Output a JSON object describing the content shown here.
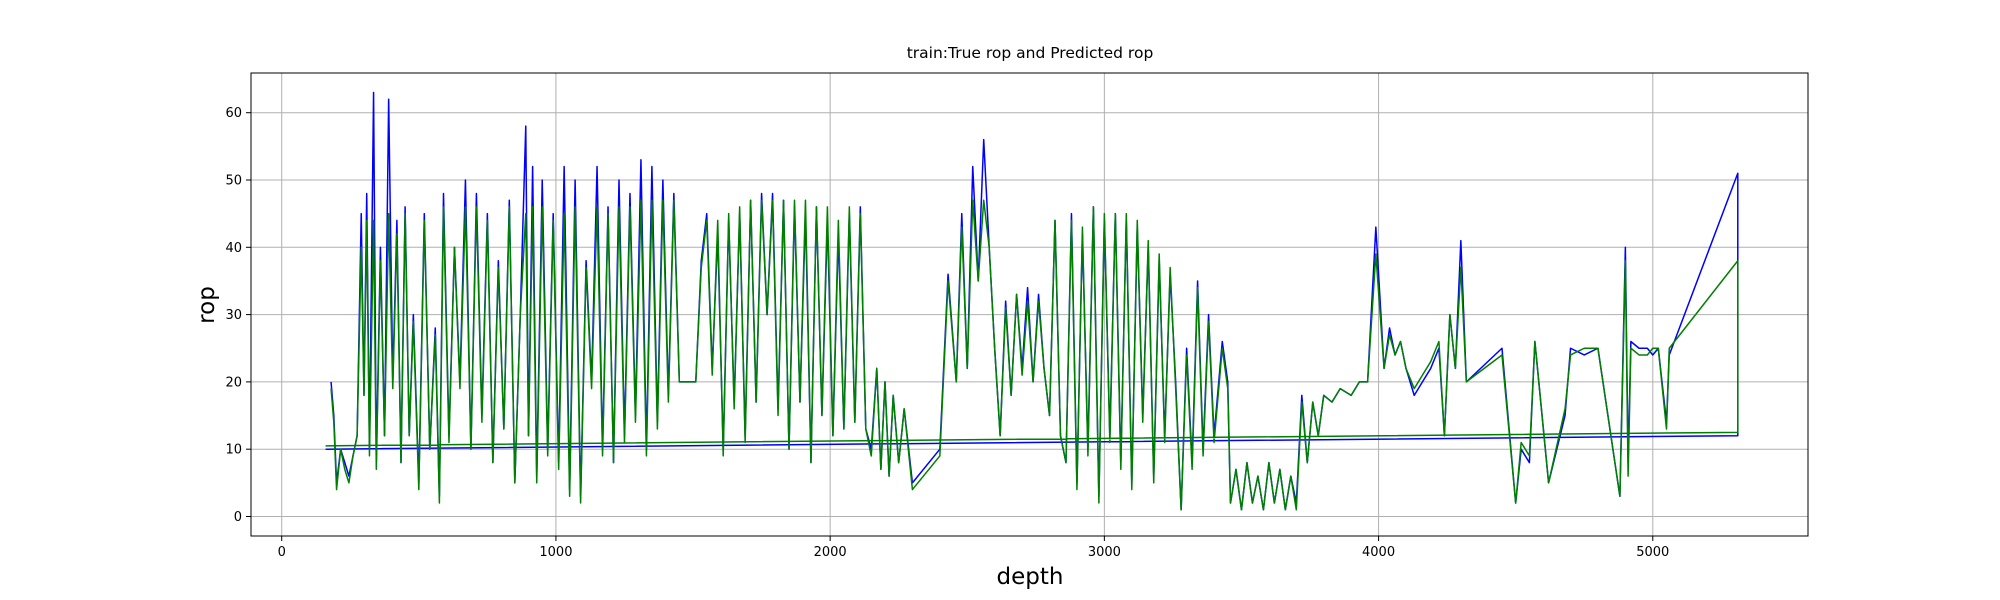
{
  "chart_data": {
    "type": "line",
    "title": "train:True rop and Predicted rop",
    "x_label": "depth",
    "y_label": "rop",
    "x": [
      180,
      190,
      200,
      215,
      230,
      245,
      260,
      275,
      290,
      300,
      310,
      320,
      335,
      345,
      360,
      375,
      390,
      405,
      420,
      435,
      450,
      465,
      480,
      500,
      520,
      540,
      560,
      575,
      590,
      610,
      630,
      650,
      670,
      690,
      710,
      730,
      750,
      770,
      790,
      810,
      830,
      850,
      870,
      890,
      900,
      915,
      930,
      950,
      970,
      990,
      1010,
      1030,
      1050,
      1070,
      1090,
      1110,
      1130,
      1150,
      1170,
      1190,
      1210,
      1230,
      1250,
      1270,
      1290,
      1310,
      1330,
      1350,
      1370,
      1390,
      1410,
      1430,
      1450,
      1470,
      1490,
      1510,
      1530,
      1550,
      1570,
      1590,
      1610,
      1630,
      1650,
      1670,
      1690,
      1710,
      1730,
      1750,
      1770,
      1790,
      1810,
      1830,
      1850,
      1870,
      1890,
      1910,
      1930,
      1950,
      1970,
      1990,
      2010,
      2030,
      2050,
      2070,
      2090,
      2110,
      2130,
      2150,
      2170,
      2185,
      2200,
      2215,
      2230,
      2250,
      2270,
      2300,
      2400,
      2430,
      2460,
      2480,
      2500,
      2520,
      2540,
      2560,
      2580,
      2600,
      2620,
      2640,
      2660,
      2680,
      2700,
      2720,
      2740,
      2760,
      2780,
      2800,
      2820,
      2840,
      2860,
      2880,
      2900,
      2920,
      2940,
      2960,
      2980,
      3000,
      3020,
      3040,
      3060,
      3080,
      3100,
      3120,
      3140,
      3160,
      3180,
      3200,
      3220,
      3240,
      3260,
      3280,
      3300,
      3320,
      3340,
      3360,
      3380,
      3400,
      3430,
      3450,
      3460,
      3480,
      3500,
      3520,
      3540,
      3560,
      3580,
      3600,
      3620,
      3640,
      3660,
      3680,
      3700,
      3720,
      3740,
      3760,
      3780,
      3800,
      3830,
      3860,
      3900,
      3930,
      3960,
      3990,
      4020,
      4040,
      4060,
      4080,
      4100,
      4130,
      4160,
      4190,
      4220,
      4240,
      4260,
      4280,
      4300,
      4320,
      4450,
      4500,
      4520,
      4550,
      4570,
      4620,
      4680,
      4700,
      4750,
      4800,
      4880,
      4900,
      4910,
      4920,
      4950,
      4980,
      5000,
      5020,
      5050,
      5060,
      5310,
      5310,
      160
    ],
    "series": [
      {
        "color": "#0000ff",
        "values": [
          20,
          15,
          5,
          10,
          8,
          6,
          9,
          12,
          45,
          18,
          48,
          10,
          63,
          8,
          40,
          12,
          62,
          20,
          44,
          8,
          46,
          12,
          30,
          5,
          45,
          10,
          28,
          3,
          48,
          12,
          40,
          20,
          50,
          10,
          48,
          15,
          45,
          8,
          38,
          13,
          47,
          5,
          30,
          58,
          12,
          52,
          6,
          50,
          10,
          45,
          8,
          52,
          4,
          50,
          3,
          38,
          20,
          52,
          10,
          46,
          8,
          50,
          12,
          48,
          15,
          53,
          10,
          52,
          14,
          50,
          18,
          48,
          20,
          20,
          20,
          20,
          38,
          45,
          22,
          42,
          10,
          44,
          17,
          45,
          12,
          47,
          17,
          48,
          30,
          48,
          16,
          47,
          10,
          46,
          17,
          45,
          8,
          46,
          15,
          44,
          12,
          42,
          13,
          45,
          14,
          46,
          13,
          10,
          22,
          7,
          20,
          6,
          18,
          8,
          16,
          5,
          10,
          36,
          20,
          45,
          22,
          52,
          35,
          56,
          40,
          25,
          12,
          32,
          18,
          33,
          22,
          34,
          20,
          33,
          22,
          15,
          44,
          12,
          8,
          45,
          5,
          42,
          10,
          46,
          3,
          44,
          12,
          45,
          8,
          44,
          5,
          43,
          15,
          40,
          6,
          38,
          12,
          36,
          20,
          1,
          25,
          8,
          35,
          10,
          30,
          12,
          26,
          20,
          2,
          7,
          1,
          8,
          2,
          6,
          1,
          8,
          2,
          7,
          1,
          6,
          2,
          18,
          8,
          17,
          12,
          18,
          17,
          19,
          18,
          20,
          20,
          43,
          22,
          28,
          24,
          26,
          22,
          18,
          20,
          22,
          25,
          12,
          30,
          22,
          41,
          20,
          25,
          2,
          10,
          8,
          26,
          5,
          15,
          25,
          24,
          25,
          3,
          40,
          8,
          26,
          25,
          25,
          24,
          25,
          14,
          24,
          51,
          12,
          10
        ]
      },
      {
        "color": "#008000",
        "values": [
          19,
          14,
          4,
          10,
          7,
          5,
          9,
          12,
          40,
          18,
          44,
          9,
          44,
          7,
          38,
          12,
          45,
          19,
          42,
          8,
          45,
          12,
          29,
          4,
          44,
          10,
          27,
          2,
          46,
          11,
          40,
          19,
          46,
          10,
          46,
          14,
          44,
          8,
          37,
          13,
          46,
          5,
          30,
          45,
          12,
          46,
          5,
          46,
          9,
          44,
          7,
          45,
          3,
          46,
          2,
          37,
          19,
          46,
          9,
          45,
          8,
          46,
          11,
          46,
          14,
          47,
          9,
          47,
          13,
          47,
          17,
          47,
          20,
          20,
          20,
          20,
          37,
          44,
          21,
          44,
          9,
          45,
          16,
          46,
          11,
          47,
          17,
          47,
          30,
          47,
          15,
          47,
          10,
          47,
          17,
          47,
          8,
          46,
          15,
          46,
          12,
          44,
          13,
          46,
          14,
          45,
          13,
          9,
          22,
          7,
          20,
          6,
          18,
          8,
          16,
          4,
          9,
          35,
          20,
          43,
          22,
          47,
          35,
          47,
          40,
          25,
          12,
          31,
          18,
          33,
          21,
          32,
          20,
          32,
          22,
          15,
          44,
          12,
          8,
          44,
          4,
          43,
          9,
          46,
          2,
          45,
          11,
          45,
          7,
          45,
          4,
          44,
          14,
          41,
          5,
          39,
          11,
          37,
          19,
          1,
          24,
          7,
          34,
          9,
          29,
          11,
          25,
          19,
          2,
          7,
          1,
          8,
          2,
          6,
          1,
          8,
          2,
          7,
          1,
          6,
          1,
          17,
          8,
          17,
          12,
          18,
          17,
          19,
          18,
          20,
          20,
          39,
          22,
          27,
          24,
          26,
          22,
          19,
          21,
          23,
          26,
          12,
          30,
          22,
          37,
          20,
          24,
          2,
          11,
          9,
          26,
          5,
          16,
          24,
          25,
          25,
          3,
          38,
          6,
          25,
          24,
          24,
          25,
          25,
          13,
          25,
          38,
          12.5,
          10.5
        ]
      }
    ],
    "xlim": [
      -112,
      5566
    ],
    "ylim": [
      -2.9,
      65.9
    ],
    "xticks": [
      0,
      1000,
      2000,
      3000,
      4000,
      5000
    ],
    "yticks": [
      0,
      10,
      20,
      30,
      40,
      50,
      60
    ],
    "grid": true
  }
}
